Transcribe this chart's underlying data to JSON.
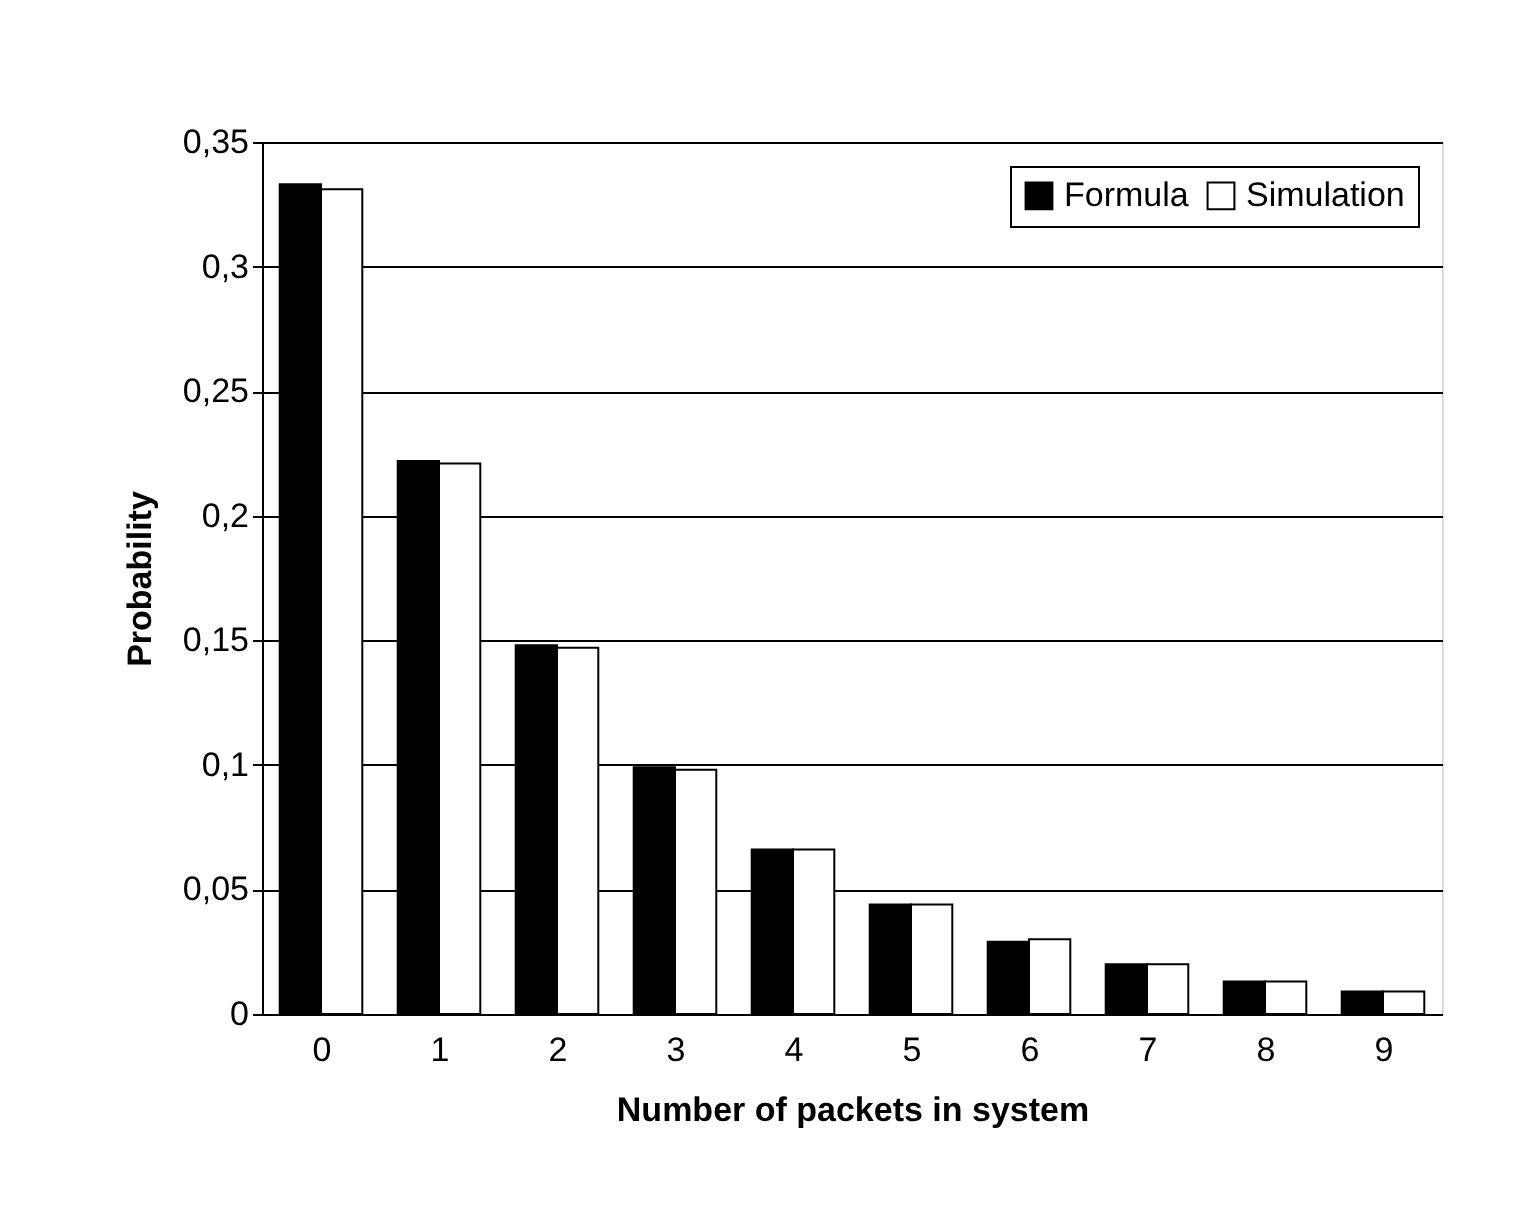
{
  "chart_data": {
    "type": "bar",
    "xlabel": "Number of packets in system",
    "ylabel": "Probability",
    "categories": [
      "0",
      "1",
      "2",
      "3",
      "4",
      "5",
      "6",
      "7",
      "8",
      "9"
    ],
    "series": [
      {
        "name": "Formula",
        "color": "#000000",
        "values": [
          0.333,
          0.222,
          0.148,
          0.099,
          0.066,
          0.044,
          0.029,
          0.02,
          0.013,
          0.009
        ]
      },
      {
        "name": "Simulation",
        "color": "#ffffff",
        "values": [
          0.331,
          0.221,
          0.147,
          0.098,
          0.066,
          0.044,
          0.03,
          0.02,
          0.013,
          0.009
        ]
      }
    ],
    "ylim": [
      0,
      0.35
    ],
    "yticks": [
      0,
      {
        "value": 0.05,
        "label": "0,05"
      },
      {
        "value": 0.1,
        "label": "0,1"
      },
      {
        "value": 0.15,
        "label": "0,15"
      },
      {
        "value": 0.2,
        "label": "0,2"
      },
      {
        "value": 0.25,
        "label": "0,25"
      },
      {
        "value": 0.3,
        "label": "0,3"
      },
      {
        "value": 0.35,
        "label": "0,35"
      }
    ],
    "grid": "y",
    "legend": "top right"
  }
}
